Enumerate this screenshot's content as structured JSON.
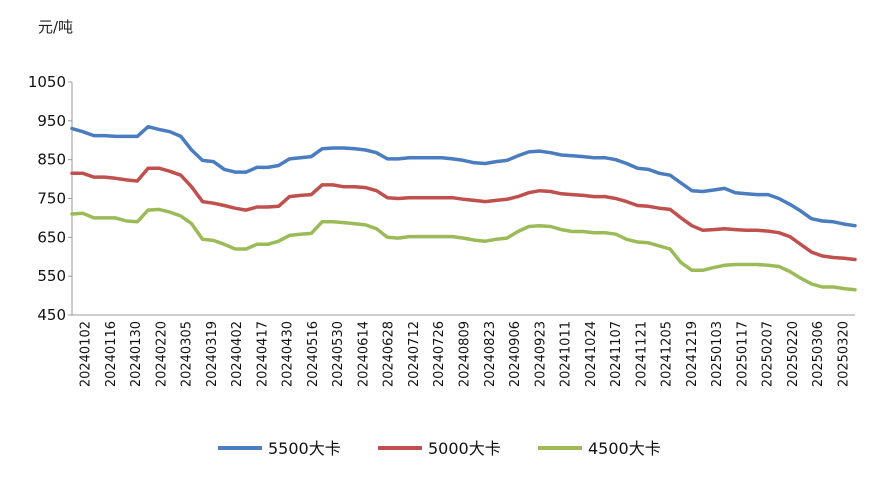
{
  "chart_data": {
    "type": "line",
    "title": "",
    "ylabel": "元/吨",
    "xlabel": "",
    "ylim": [
      450,
      1050
    ],
    "yticks": [
      450,
      550,
      650,
      750,
      850,
      950,
      1050
    ],
    "grid": false,
    "legend_position": "bottom",
    "x_tick_labels": [
      "20240102",
      "20240116",
      "20240130",
      "20240220",
      "20240305",
      "20240319",
      "20240402",
      "20240417",
      "20240430",
      "20240516",
      "20240530",
      "20240614",
      "20240628",
      "20240712",
      "20240726",
      "20240809",
      "20240823",
      "20240906",
      "20240923",
      "20241011",
      "20241024",
      "20241107",
      "20241121",
      "20241205",
      "20241219",
      "20250103",
      "20250117",
      "20250207",
      "20250220",
      "20250306",
      "20250320"
    ],
    "series": [
      {
        "name": "5500大卡",
        "color": "#4a7dbf",
        "values": [
          930,
          922,
          912,
          912,
          910,
          910,
          910,
          935,
          928,
          922,
          910,
          875,
          848,
          845,
          825,
          818,
          818,
          830,
          830,
          835,
          852,
          855,
          858,
          878,
          880,
          880,
          878,
          875,
          868,
          852,
          852,
          855,
          855,
          855,
          855,
          852,
          848,
          842,
          840,
          845,
          848,
          860,
          870,
          872,
          868,
          862,
          860,
          858,
          855,
          855,
          850,
          840,
          828,
          825,
          815,
          810,
          790,
          770,
          768,
          772,
          776,
          765,
          762,
          760,
          760,
          750,
          735,
          718,
          698,
          692,
          690,
          684,
          680
        ]
      },
      {
        "name": "5000大卡",
        "color": "#c0504d",
        "values": [
          815,
          815,
          805,
          805,
          802,
          798,
          795,
          828,
          828,
          820,
          810,
          780,
          742,
          738,
          732,
          725,
          720,
          728,
          728,
          730,
          755,
          758,
          760,
          785,
          785,
          780,
          780,
          778,
          770,
          752,
          750,
          752,
          752,
          752,
          752,
          752,
          748,
          745,
          742,
          745,
          748,
          755,
          765,
          770,
          768,
          762,
          760,
          758,
          755,
          755,
          750,
          742,
          732,
          730,
          725,
          722,
          700,
          680,
          668,
          670,
          672,
          670,
          668,
          668,
          666,
          662,
          652,
          632,
          612,
          602,
          598,
          596,
          593
        ]
      },
      {
        "name": "4500大卡",
        "color": "#9bbb59",
        "values": [
          710,
          712,
          700,
          700,
          700,
          692,
          690,
          720,
          722,
          715,
          705,
          685,
          645,
          642,
          632,
          620,
          620,
          632,
          632,
          640,
          655,
          658,
          660,
          690,
          690,
          688,
          685,
          682,
          672,
          650,
          648,
          652,
          652,
          652,
          652,
          652,
          648,
          643,
          640,
          645,
          648,
          665,
          678,
          680,
          678,
          670,
          665,
          665,
          662,
          662,
          658,
          645,
          638,
          636,
          628,
          620,
          585,
          565,
          565,
          572,
          578,
          580,
          580,
          580,
          578,
          575,
          562,
          545,
          530,
          522,
          522,
          518,
          515
        ]
      }
    ]
  }
}
